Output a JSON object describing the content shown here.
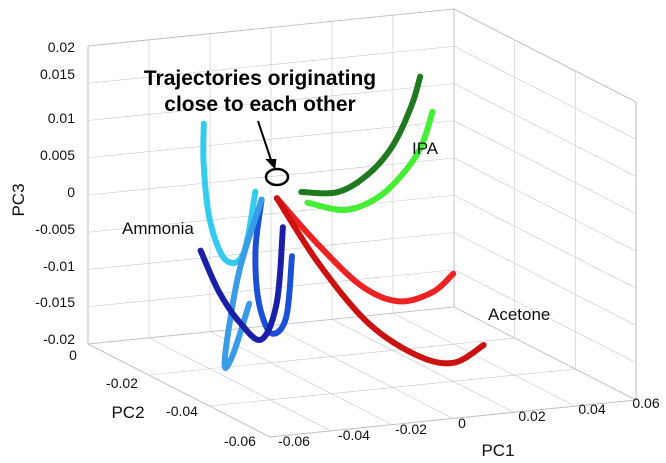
{
  "chart_data": {
    "type": "line",
    "subtype": "3d-trajectory",
    "title": "",
    "xlabel": "PC1",
    "ylabel": "PC2",
    "zlabel": "PC3",
    "x_ticks": [
      "-0.06",
      "-0.04",
      "-0.02",
      "0",
      "0.02",
      "0.04",
      "0.06"
    ],
    "y_ticks": [
      "-0.06",
      "-0.04",
      "-0.02",
      "0"
    ],
    "z_ticks": [
      "0.02",
      "0.015",
      "0.01",
      "0.005",
      "0",
      "-0.005",
      "-0.01",
      "-0.015",
      "-0.02"
    ],
    "xlim": [
      -0.06,
      0.06
    ],
    "ylim": [
      -0.06,
      0
    ],
    "zlim": [
      -0.02,
      0.02
    ],
    "grid": true,
    "annotation": {
      "lines": [
        "Trajectories originating",
        "close to each other"
      ]
    },
    "series_labels": [
      {
        "text": "IPA"
      },
      {
        "text": "Ammonia"
      },
      {
        "text": "Acetone"
      }
    ],
    "series": [
      {
        "group": "IPA",
        "color": "#1f7a1f",
        "x": [
          0.0,
          0.01,
          0.02,
          0.03,
          0.04,
          0.047
        ],
        "y": [
          -0.01,
          -0.012,
          -0.012,
          -0.01,
          -0.006,
          -0.002
        ],
        "z": [
          0.0,
          0.0,
          0.002,
          0.005,
          0.009,
          0.012
        ]
      },
      {
        "group": "IPA",
        "color": "#44ee33",
        "x": [
          0.0,
          0.01,
          0.02,
          0.03,
          0.04,
          0.047
        ],
        "y": [
          -0.012,
          -0.014,
          -0.014,
          -0.012,
          -0.009,
          -0.006
        ],
        "z": [
          -0.001,
          -0.002,
          -0.001,
          0.001,
          0.004,
          0.008
        ]
      },
      {
        "group": "Ammonia",
        "color": "#33ccee",
        "x": [
          -0.03,
          -0.032,
          -0.032,
          -0.029,
          -0.025,
          -0.02
        ],
        "y": [
          -0.008,
          -0.01,
          -0.012,
          -0.014,
          -0.016,
          -0.015
        ],
        "z": [
          0.01,
          0.005,
          -0.002,
          -0.007,
          -0.006,
          0.002
        ]
      },
      {
        "group": "Ammonia",
        "color": "#1a4fd8",
        "x": [
          -0.015,
          -0.02,
          -0.022,
          -0.02,
          -0.016,
          -0.013
        ],
        "y": [
          -0.012,
          -0.015,
          -0.018,
          -0.02,
          -0.021,
          -0.02
        ],
        "z": [
          0.0,
          -0.006,
          -0.012,
          -0.016,
          -0.014,
          -0.006
        ]
      },
      {
        "group": "Ammonia",
        "color": "#3a9ce6",
        "x": [
          -0.015,
          -0.025,
          -0.032,
          -0.035,
          -0.032,
          -0.026
        ],
        "y": [
          -0.012,
          -0.015,
          -0.018,
          -0.02,
          -0.02,
          -0.019
        ],
        "z": [
          0.0,
          -0.008,
          -0.016,
          -0.02,
          -0.018,
          -0.012
        ]
      },
      {
        "group": "Ammonia",
        "color": "#1a1fa8",
        "x": [
          -0.035,
          -0.032,
          -0.027,
          -0.022,
          -0.018,
          -0.016
        ],
        "y": [
          -0.012,
          -0.015,
          -0.017,
          -0.019,
          -0.02,
          -0.02
        ],
        "z": [
          -0.006,
          -0.011,
          -0.015,
          -0.017,
          -0.012,
          -0.002
        ]
      },
      {
        "group": "Acetone",
        "color": "#ee2222",
        "x": [
          -0.01,
          0.0,
          0.01,
          0.02,
          0.03,
          0.038
        ],
        "y": [
          -0.012,
          -0.016,
          -0.02,
          -0.022,
          -0.023,
          -0.022
        ],
        "z": [
          0.0,
          -0.006,
          -0.011,
          -0.013,
          -0.012,
          -0.01
        ]
      },
      {
        "group": "Acetone",
        "color": "#cc1111",
        "x": [
          -0.01,
          -0.002,
          0.008,
          0.02,
          0.03,
          0.04
        ],
        "y": [
          -0.012,
          -0.018,
          -0.024,
          -0.028,
          -0.03,
          -0.03
        ],
        "z": [
          0.0,
          -0.008,
          -0.015,
          -0.019,
          -0.02,
          -0.018
        ]
      }
    ]
  }
}
